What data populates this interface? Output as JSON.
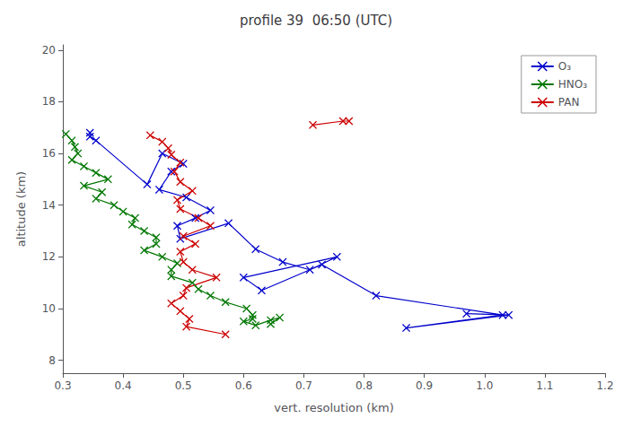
{
  "chart_data": {
    "type": "line",
    "title": "profile 39  06:50 (UTC)",
    "xlabel": "vert. resolution (km)",
    "ylabel": "altitude (km)",
    "xlim": [
      0.3,
      1.2
    ],
    "ylim": [
      7.5,
      20.2
    ],
    "xticks": [
      0.3,
      0.4,
      0.5,
      0.6,
      0.7,
      0.8,
      0.9,
      {
        "value": 1.0,
        "label": "1.0"
      },
      1.1,
      1.2
    ],
    "yticks": [
      8,
      10,
      12,
      14,
      16,
      18,
      20
    ],
    "grid": false,
    "legend": "upper right",
    "marker": "x",
    "series": [
      {
        "name": "O₃",
        "color": "#0000cc",
        "x": [
          0.345,
          0.345,
          0.355,
          0.44,
          0.465,
          0.5,
          0.48,
          0.46,
          0.505,
          0.545,
          0.52,
          0.49,
          0.495,
          0.575,
          0.62,
          0.665,
          0.71,
          0.755,
          0.6,
          0.63,
          0.73,
          0.82,
          1.03,
          0.87,
          1.04,
          0.97
        ],
        "y": [
          16.8,
          16.65,
          16.5,
          14.8,
          16.0,
          15.6,
          15.3,
          14.6,
          14.3,
          13.8,
          13.5,
          13.2,
          12.7,
          13.3,
          12.3,
          11.8,
          11.5,
          12.0,
          11.2,
          10.7,
          11.7,
          10.5,
          9.75,
          9.25,
          9.75,
          9.8
        ]
      },
      {
        "name": "HNO₃",
        "color": "#007700",
        "x": [
          0.305,
          0.315,
          0.32,
          0.325,
          0.315,
          0.335,
          0.355,
          0.375,
          0.335,
          0.365,
          0.355,
          0.385,
          0.4,
          0.42,
          0.415,
          0.435,
          0.455,
          0.455,
          0.435,
          0.465,
          0.49,
          0.48,
          0.48,
          0.515,
          0.525,
          0.545,
          0.57,
          0.605,
          0.615,
          0.615,
          0.6,
          0.62,
          0.645,
          0.66,
          0.645
        ],
        "y": [
          16.75,
          16.5,
          16.25,
          16.0,
          15.75,
          15.5,
          15.25,
          15.0,
          14.75,
          14.5,
          14.25,
          14.0,
          13.75,
          13.5,
          13.25,
          13.0,
          12.75,
          12.5,
          12.25,
          12.0,
          11.75,
          11.5,
          11.25,
          11.0,
          10.75,
          10.5,
          10.25,
          10.0,
          9.75,
          9.6,
          9.5,
          9.35,
          9.55,
          9.65,
          9.4
        ]
      },
      {
        "name": "PAN",
        "color": "#cc0000",
        "x": [
          0.445,
          0.465,
          0.475,
          0.48,
          0.495,
          0.485,
          0.495,
          0.515,
          0.49,
          0.495,
          0.525,
          0.545,
          0.5,
          0.52,
          0.495,
          0.5,
          0.515,
          0.555,
          0.505,
          0.5,
          0.48,
          0.495,
          0.51,
          0.505,
          0.57,
          null,
          0.715,
          0.765,
          0.775
        ],
        "y": [
          16.7,
          16.45,
          16.2,
          15.95,
          15.65,
          15.3,
          14.9,
          14.55,
          14.2,
          13.85,
          13.5,
          13.2,
          12.8,
          12.5,
          12.2,
          11.8,
          11.5,
          11.2,
          10.8,
          10.5,
          10.2,
          9.9,
          9.6,
          9.3,
          9.0,
          null,
          17.1,
          17.25,
          17.25
        ]
      }
    ]
  }
}
